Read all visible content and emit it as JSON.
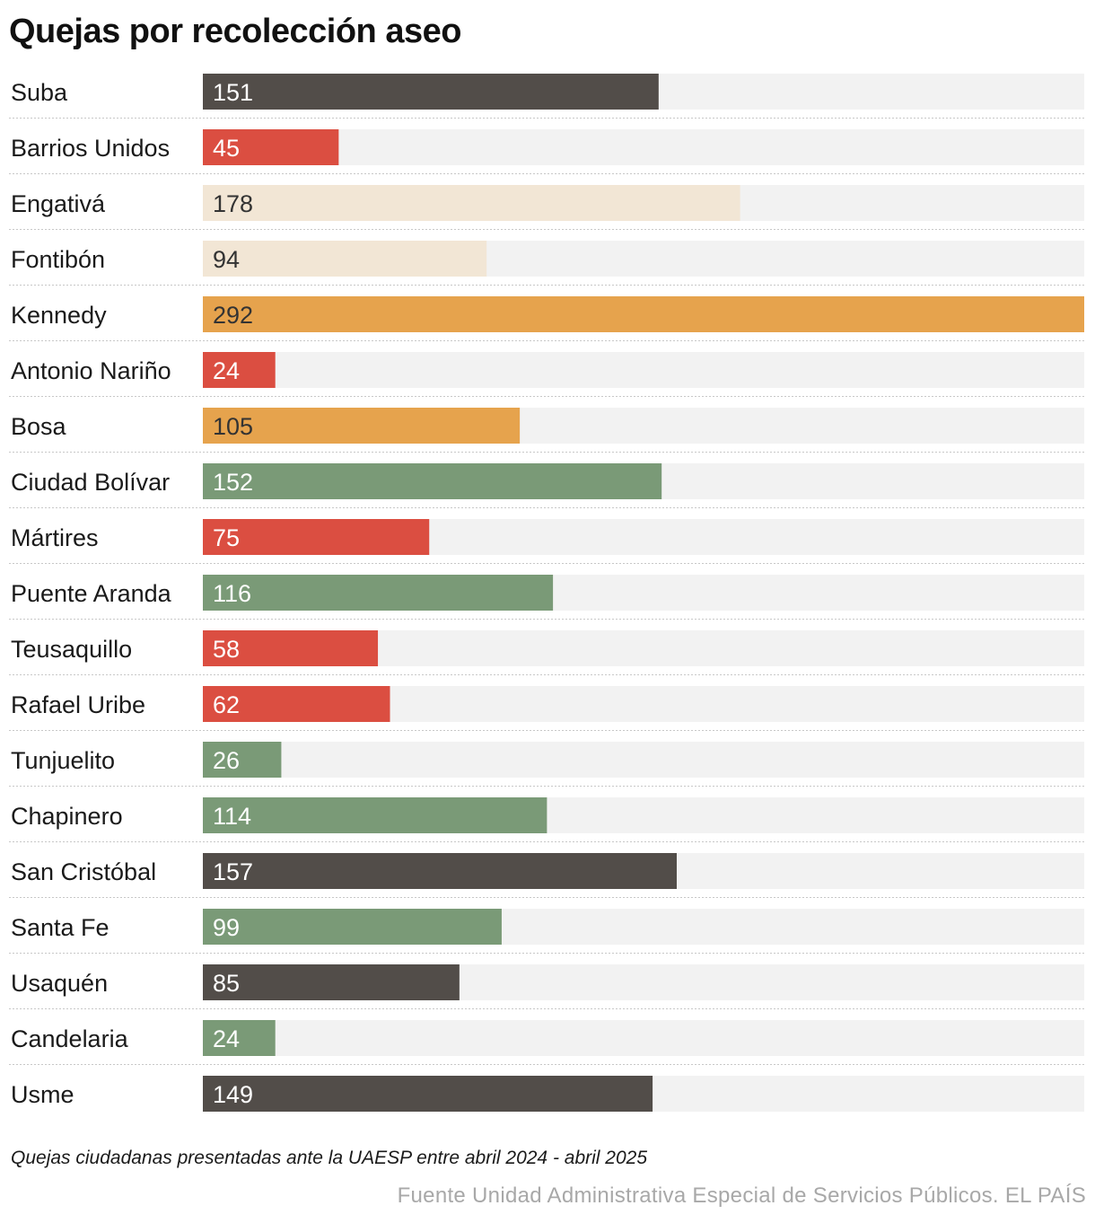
{
  "title": "Quejas por recolección aseo",
  "note": "Quejas ciudadanas presentadas ante la UAESP entre abril 2024 - abril 2025",
  "source": "Fuente Unidad Administrativa Especial de Servicios Públicos. EL PAÍS",
  "colors": {
    "dark": "#524d49",
    "red": "#db4e41",
    "cream": "#f2e6d5",
    "orange": "#e6a34d",
    "green": "#7a9a77",
    "track": "#f2f2f2",
    "label_light": "#ffffff",
    "label_dark": "#333333"
  },
  "chart_data": {
    "type": "bar",
    "orientation": "horizontal",
    "title": "Quejas por recolección aseo",
    "xlim": [
      0,
      292
    ],
    "categories": [
      "Suba",
      "Barrios Unidos",
      "Engativá",
      "Fontibón",
      "Kennedy",
      "Antonio Nariño",
      "Bosa",
      "Ciudad Bolívar",
      "Mártires",
      "Puente Aranda",
      "Teusaquillo",
      "Rafael Uribe",
      "Tunjuelito",
      "Chapinero",
      "San Cristóbal",
      "Santa Fe",
      "Usaquén",
      "Candelaria",
      "Usme"
    ],
    "values": [
      151,
      45,
      178,
      94,
      292,
      24,
      105,
      152,
      75,
      116,
      58,
      62,
      26,
      114,
      157,
      99,
      85,
      24,
      149
    ],
    "bar_colors": [
      "dark",
      "red",
      "cream",
      "cream",
      "orange",
      "red",
      "orange",
      "green",
      "red",
      "green",
      "red",
      "red",
      "green",
      "green",
      "dark",
      "green",
      "dark",
      "green",
      "dark"
    ]
  }
}
